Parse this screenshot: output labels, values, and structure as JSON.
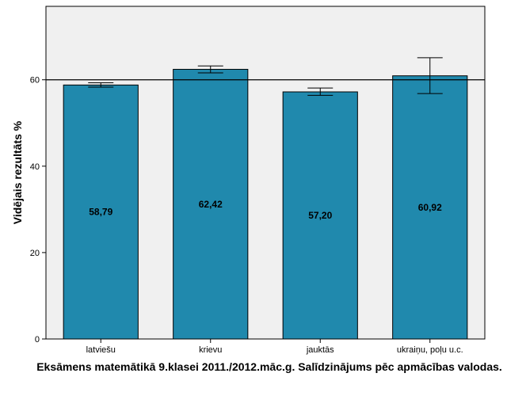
{
  "chart_data": {
    "type": "bar",
    "categories": [
      "latviešu",
      "krievu",
      "jauktās",
      "ukraiņu, poļu u.c."
    ],
    "values": [
      58.79,
      62.42,
      57.2,
      60.92
    ],
    "value_labels": [
      "58,79",
      "62,42",
      "57,20",
      "60,92"
    ],
    "error_bars": [
      {
        "low": 58.3,
        "high": 59.3
      },
      {
        "low": 61.6,
        "high": 63.2
      },
      {
        "low": 56.4,
        "high": 58.1
      },
      {
        "low": 56.8,
        "high": 65.1
      }
    ],
    "reference_line": 60,
    "xlabel": "Eksāmens matemātikā 9.klasei 2011./2012.māc.g. Salīdzinājums pēc apmācības valodas.",
    "ylabel": "Vidējais rezultāts %",
    "ylim": [
      0,
      77
    ],
    "yticks": [
      0,
      20,
      40,
      60
    ],
    "grid": false,
    "colors": {
      "bar": "#2089ad",
      "plot_background": "#f0f0f0",
      "axis": "#000000"
    }
  }
}
